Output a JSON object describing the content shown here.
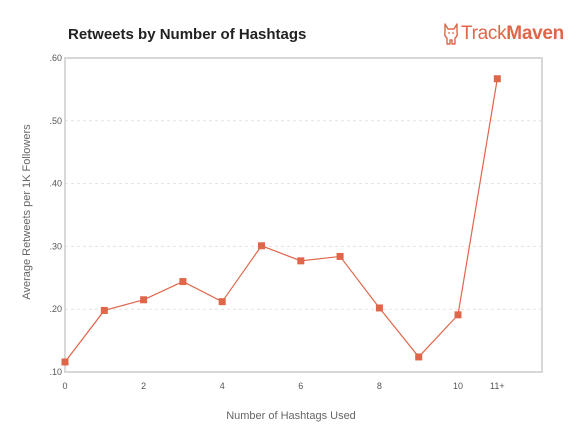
{
  "header": {
    "title": "Retweets by Number of Hashtags"
  },
  "logo": {
    "part1": "Track",
    "part2": "Maven",
    "icon": "dog-icon"
  },
  "colors": {
    "series": "#e0664a",
    "frame": "#d8d8d8",
    "grid": "#e2e2e2"
  },
  "chart_data": {
    "type": "line",
    "xlabel": "Number of Hashtags Used",
    "ylabel": "Average Retweets per 1K Followers",
    "x_ticks": [
      "0",
      "2",
      "4",
      "6",
      "8",
      "10",
      "11+"
    ],
    "y_ticks": [
      ".10",
      ".20",
      ".30",
      ".40",
      ".50",
      ".60"
    ],
    "ylim": [
      0.1,
      0.6
    ],
    "grid": "horizontal-dashed",
    "categories": [
      "0",
      "1",
      "2",
      "3",
      "4",
      "5",
      "6",
      "7",
      "8",
      "9",
      "10",
      "11+"
    ],
    "values": [
      0.116,
      0.198,
      0.215,
      0.244,
      0.212,
      0.301,
      0.277,
      0.284,
      0.202,
      0.124,
      0.191,
      0.567
    ]
  }
}
